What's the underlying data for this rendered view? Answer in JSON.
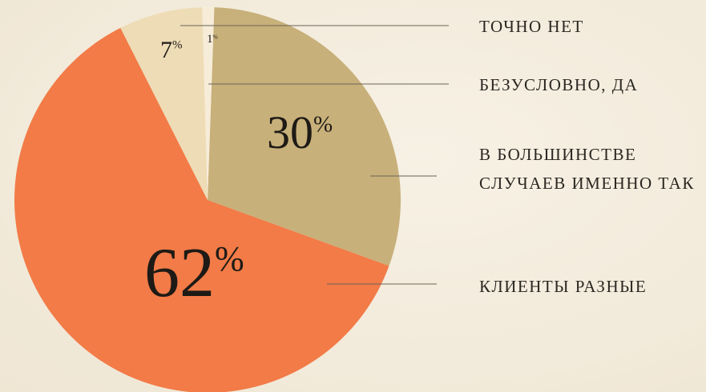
{
  "chart_data": {
    "type": "pie",
    "categories": [
      "В БОЛЬШИНСТВЕ СЛУЧАЕВ ИМЕННО ТАК",
      "КЛИЕНТЫ РАЗНЫЕ",
      "ТОЧНО НЕТ",
      "БЕЗУСЛОВНО, ДА"
    ],
    "values": [
      30,
      62,
      7,
      1
    ],
    "unit": "%",
    "colors": [
      "#c8b07a",
      "#f27b47",
      "#eedcb6",
      "#f6ecd8"
    ]
  }
}
